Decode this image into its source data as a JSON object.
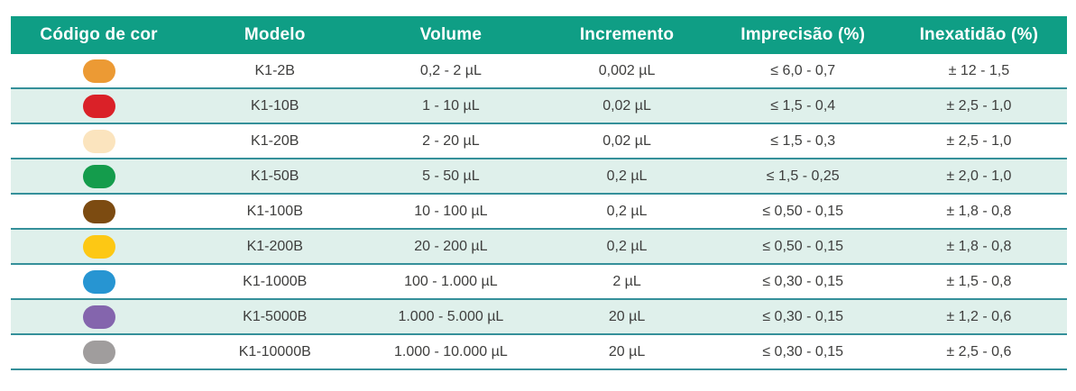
{
  "chart_data": {
    "type": "table",
    "columns": [
      "Código de cor",
      "Modelo",
      "Volume",
      "Incremento",
      "Imprecisão (%)",
      "Inexatidão (%)"
    ],
    "rows": [
      {
        "color_code": "orange",
        "color_hex": "#EC9A34",
        "modelo": "K1-2B",
        "volume": "0,2 - 2 µL",
        "incremento": "0,002 µL",
        "imprecisao": "≤ 6,0 - 0,7",
        "inexatidao": "± 12 - 1,5"
      },
      {
        "color_code": "red",
        "color_hex": "#DA2128",
        "modelo": "K1-10B",
        "volume": "1 - 10 µL",
        "incremento": "0,02 µL",
        "imprecisao": "≤ 1,5 - 0,4",
        "inexatidao": "± 2,5 - 1,0"
      },
      {
        "color_code": "cream",
        "color_hex": "#FBE4BE",
        "modelo": "K1-20B",
        "volume": "2 - 20 µL",
        "incremento": "0,02 µL",
        "imprecisao": "≤ 1,5 - 0,3",
        "inexatidao": "± 2,5 - 1,0"
      },
      {
        "color_code": "green",
        "color_hex": "#149C4C",
        "modelo": "K1-50B",
        "volume": "5 - 50 µL",
        "incremento": "0,2 µL",
        "imprecisao": "≤ 1,5 - 0,25",
        "inexatidao": "± 2,0 - 1,0"
      },
      {
        "color_code": "brown",
        "color_hex": "#7C4B11",
        "modelo": "K1-100B",
        "volume": "10 - 100 µL",
        "incremento": "0,2 µL",
        "imprecisao": "≤ 0,50 - 0,15",
        "inexatidao": "± 1,8 - 0,8"
      },
      {
        "color_code": "yellow",
        "color_hex": "#FDC814",
        "modelo": "K1-200B",
        "volume": "20 - 200 µL",
        "incremento": "0,2 µL",
        "imprecisao": "≤ 0,50 - 0,15",
        "inexatidao": "± 1,8 - 0,8"
      },
      {
        "color_code": "blue",
        "color_hex": "#2795D2",
        "modelo": "K1-1000B",
        "volume": "100 - 1.000 µL",
        "incremento": "2 µL",
        "imprecisao": "≤ 0,30 - 0,15",
        "inexatidao": "± 1,5 - 0,8"
      },
      {
        "color_code": "purple",
        "color_hex": "#8465AD",
        "modelo": "K1-5000B",
        "volume": "1.000 - 5.000 µL",
        "incremento": "20 µL",
        "imprecisao": "≤ 0,30 - 0,15",
        "inexatidao": "± 1,2 - 0,6"
      },
      {
        "color_code": "gray",
        "color_hex": "#A09D9D",
        "modelo": "K1-10000B",
        "volume": "1.000 - 10.000 µL",
        "incremento": "20 µL",
        "imprecisao": "≤ 0,30 - 0,15",
        "inexatidao": "± 2,5 - 0,6"
      }
    ]
  },
  "colors": {
    "header_bg": "#0F9E85",
    "header_text": "#FFFFFF",
    "row_bg": "#FFFFFF",
    "row_alt_bg": "#DFF0EB",
    "separator": "#35909A",
    "body_text": "#3E3E3D"
  }
}
